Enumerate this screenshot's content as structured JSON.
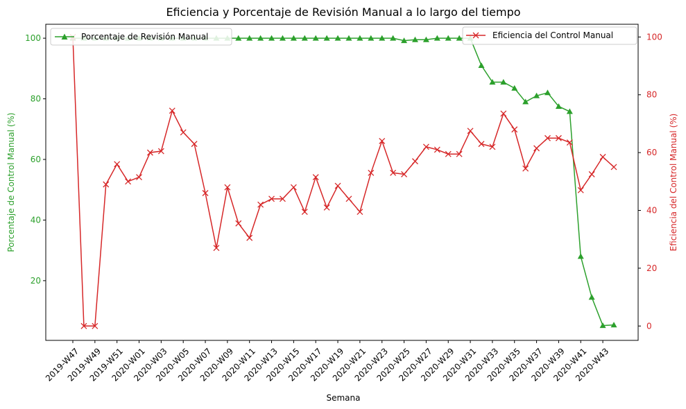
{
  "chart_data": {
    "type": "line",
    "title": "Eficiencia y Porcentaje de Revisión Manual a lo largo del tiempo",
    "xlabel": "Semana",
    "ylabel_left": "Porcentaje de Control Manual (%)",
    "ylabel_right": "Eficiencia del Control Manual (%)",
    "x": [
      "2019-W47",
      "2019-W48",
      "2019-W49",
      "2019-W50",
      "2019-W51",
      "2019-W52",
      "2020-W01",
      "2020-W02",
      "2020-W03",
      "2020-W04",
      "2020-W05",
      "2020-W06",
      "2020-W07",
      "2020-W08",
      "2020-W09",
      "2020-W10",
      "2020-W11",
      "2020-W12",
      "2020-W13",
      "2020-W14",
      "2020-W15",
      "2020-W16",
      "2020-W17",
      "2020-W18",
      "2020-W19",
      "2020-W20",
      "2020-W21",
      "2020-W22",
      "2020-W23",
      "2020-W24",
      "2020-W25",
      "2020-W26",
      "2020-W27",
      "2020-W28",
      "2020-W29",
      "2020-W30",
      "2020-W31",
      "2020-W32",
      "2020-W33",
      "2020-W34",
      "2020-W35",
      "2020-W36",
      "2020-W37",
      "2020-W38",
      "2020-W39",
      "2020-W40",
      "2020-W41",
      "2020-W42",
      "2020-W43",
      "2020-W44"
    ],
    "xtick_labels": [
      "2019-W47",
      "2019-W49",
      "2019-W51",
      "2020-W01",
      "2020-W03",
      "2020-W05",
      "2020-W07",
      "2020-W09",
      "2020-W11",
      "2020-W13",
      "2020-W15",
      "2020-W17",
      "2020-W19",
      "2020-W21",
      "2020-W23",
      "2020-W25",
      "2020-W27",
      "2020-W29",
      "2020-W31",
      "2020-W33",
      "2020-W35",
      "2020-W37",
      "2020-W39",
      "2020-W41",
      "2020-W43"
    ],
    "y_left_ticks": [
      20,
      40,
      60,
      80,
      100
    ],
    "y_right_ticks": [
      0,
      20,
      40,
      60,
      80,
      100
    ],
    "y_left_lim": [
      0.3,
      104.6
    ],
    "y_right_lim": [
      -4.97,
      104.4
    ],
    "legend_left_position": "top-left",
    "legend_right_position": "top-right",
    "grid": false,
    "series": [
      {
        "name": "Porcentaje de Revisión Manual",
        "axis": "left",
        "color": "#2ca02c",
        "marker": "triangle",
        "values": [
          100,
          100,
          100,
          100,
          100,
          100,
          100,
          100,
          100,
          100,
          100,
          100,
          100,
          100,
          100,
          100,
          100,
          100,
          100,
          100,
          100,
          100,
          100,
          100,
          100,
          100,
          100,
          100,
          100,
          100,
          99.2,
          99.5,
          99.5,
          100,
          100,
          100,
          100,
          91,
          85.5,
          85.5,
          83.5,
          79,
          81,
          82,
          77.5,
          75.8,
          28,
          14.5,
          5.2,
          5.4
        ]
      },
      {
        "name": "Eficiencia del Control Manual",
        "axis": "right",
        "color": "#d62728",
        "marker": "x",
        "values": [
          100,
          0,
          0,
          49,
          56,
          50,
          51.5,
          60,
          60.5,
          74.5,
          67,
          63,
          46,
          27,
          48,
          35.5,
          30.5,
          42,
          44,
          44,
          48,
          39.5,
          51.5,
          41,
          48.5,
          44,
          39.5,
          53,
          64,
          53,
          52.5,
          57,
          62,
          61,
          59.5,
          59.5,
          67.5,
          63,
          62,
          73.5,
          68,
          54.5,
          61.5,
          65,
          65,
          63.5,
          47,
          52.5,
          58.5,
          55
        ]
      }
    ]
  }
}
